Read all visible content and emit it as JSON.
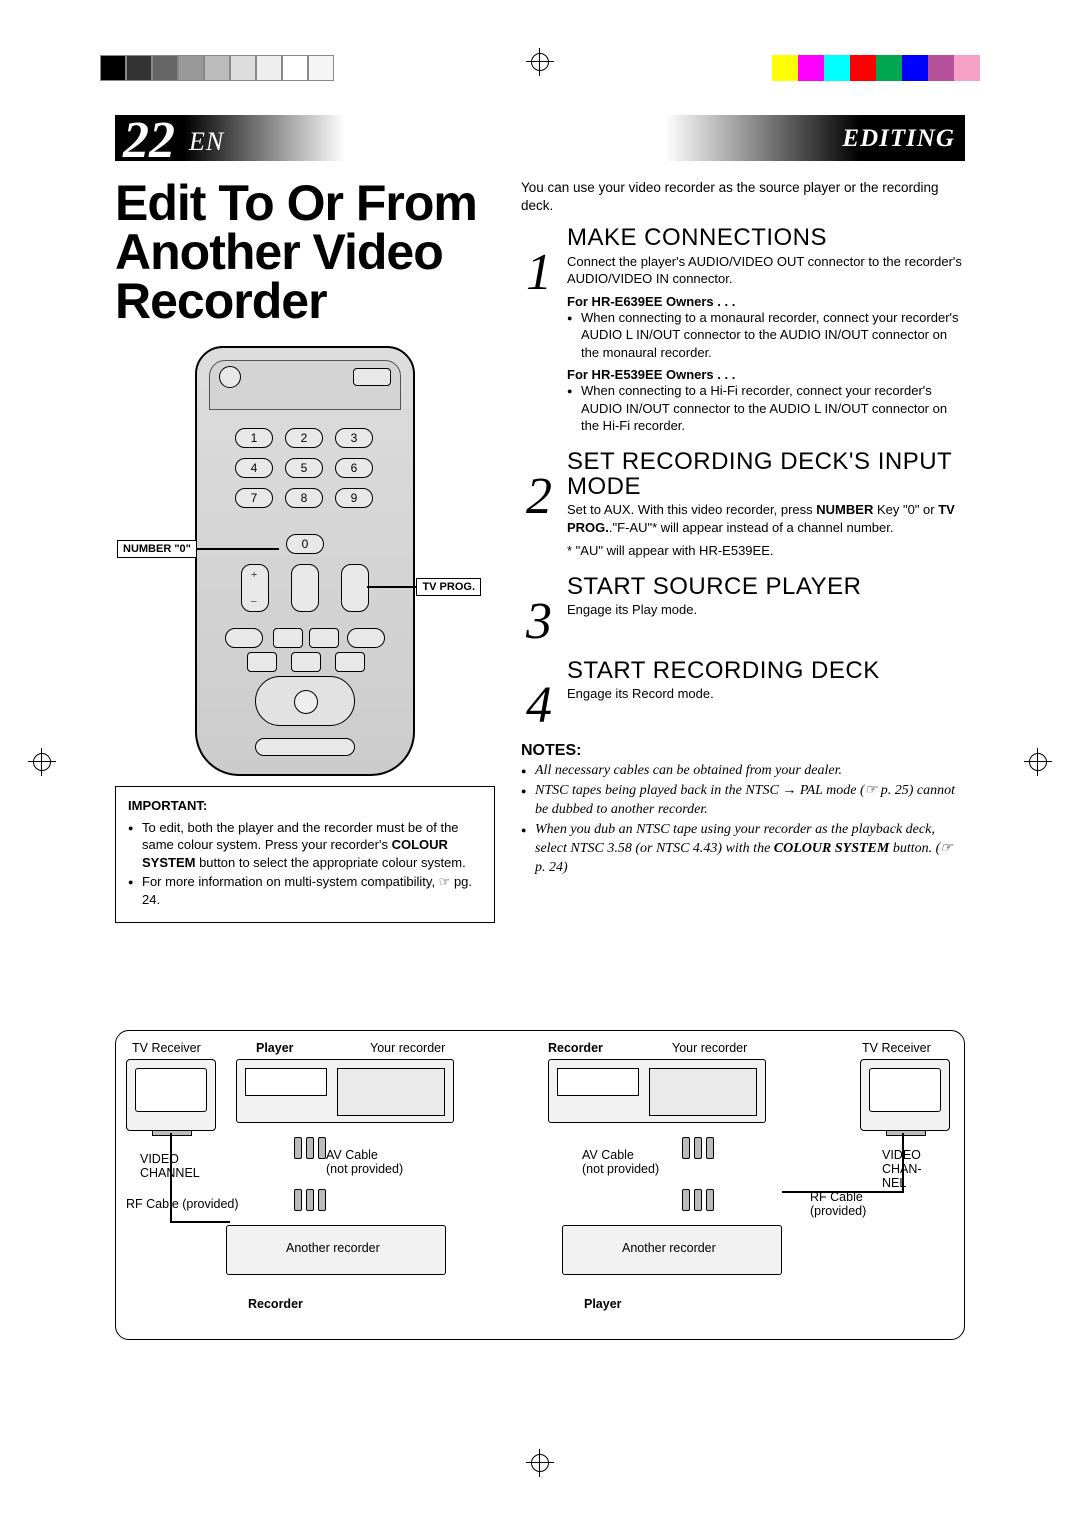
{
  "reg_colors_left": [
    "#000000",
    "#333333",
    "#666666",
    "#999999",
    "#bbbbbb",
    "#dddddd",
    "#eeeeee",
    "#ffffff",
    "#f5f5f5"
  ],
  "reg_colors_right": [
    "#ffff00",
    "#ff00ff",
    "#00ffff",
    "#ff0000",
    "#00a650",
    "#0000ff",
    "#b6529c",
    "#f7a1c4"
  ],
  "header": {
    "page_num": "22",
    "lang": "EN",
    "section": "EDITING"
  },
  "title": "Edit To Or From Another Video Recorder",
  "remote": {
    "callout_left": "NUMBER \"0\"",
    "callout_right": "TV PROG.",
    "plus": "+",
    "minus": "–"
  },
  "important": {
    "heading": "IMPORTANT:",
    "items": [
      "To edit, both the player and the recorder must be of the same colour system. Press your recorder's <span class='bld'>COLOUR SYSTEM</span> button to select the appropriate colour system.",
      "For more information on multi-system compatibility, ☞ pg. 24."
    ]
  },
  "intro": "You can use your video recorder as the source player or the recording deck.",
  "steps": [
    {
      "n": "1",
      "title": "MAKE CONNECTIONS",
      "text": "Connect the player's AUDIO/VIDEO OUT connector to the recorder's AUDIO/VIDEO IN connector.",
      "subs": [
        {
          "h": "For HR-E639EE Owners . . .",
          "items": [
            "When connecting to a monaural recorder, connect your recorder's AUDIO L IN/OUT connector to the AUDIO IN/OUT connector on the monaural recorder."
          ]
        },
        {
          "h": "For HR-E539EE Owners . . .",
          "items": [
            "When connecting to a Hi-Fi recorder, connect your recorder's AUDIO IN/OUT connector to the AUDIO L IN/OUT connector on the Hi-Fi recorder."
          ]
        }
      ]
    },
    {
      "n": "2",
      "title": "SET RECORDING DECK'S INPUT MODE",
      "text": "Set to AUX. With this video recorder, press <span class='bld'>NUMBER</span> Key \"0\" or <span class='bld'>TV PROG.</span>.\"F-AU\"* will appear instead of a channel number.",
      "footnote": "* \"AU\" will appear with HR-E539EE."
    },
    {
      "n": "3",
      "title": "START SOURCE PLAYER",
      "text": "Engage its Play mode."
    },
    {
      "n": "4",
      "title": "START RECORDING DECK",
      "text": "Engage its Record mode."
    }
  ],
  "notes": {
    "heading": "NOTES:",
    "items": [
      "All necessary cables can be obtained from your dealer.",
      "NTSC tapes being played back in the NTSC <span class='arrow'>→</span> PAL mode (☞ p. 25) cannot be dubbed to another recorder.",
      "When you dub an NTSC tape using your recorder as the playback deck, select NTSC 3.58 (or NTSC 4.43) with the <span class='bld' style='font-style:italic'>COLOUR SYSTEM</span> button. (☞ p. 24)"
    ]
  },
  "diagram": {
    "tv": "TV Receiver",
    "player": "Player",
    "recorder": "Recorder",
    "your_rec": "Your recorder",
    "another": "Another recorder",
    "video_ch": "VIDEO CHANNEL",
    "video_ch2": "VIDEO CHAN-\nNEL",
    "rf": "RF Cable (provided)",
    "rf2": "RF Cable (provided)",
    "av": "AV Cable (not provided)"
  }
}
